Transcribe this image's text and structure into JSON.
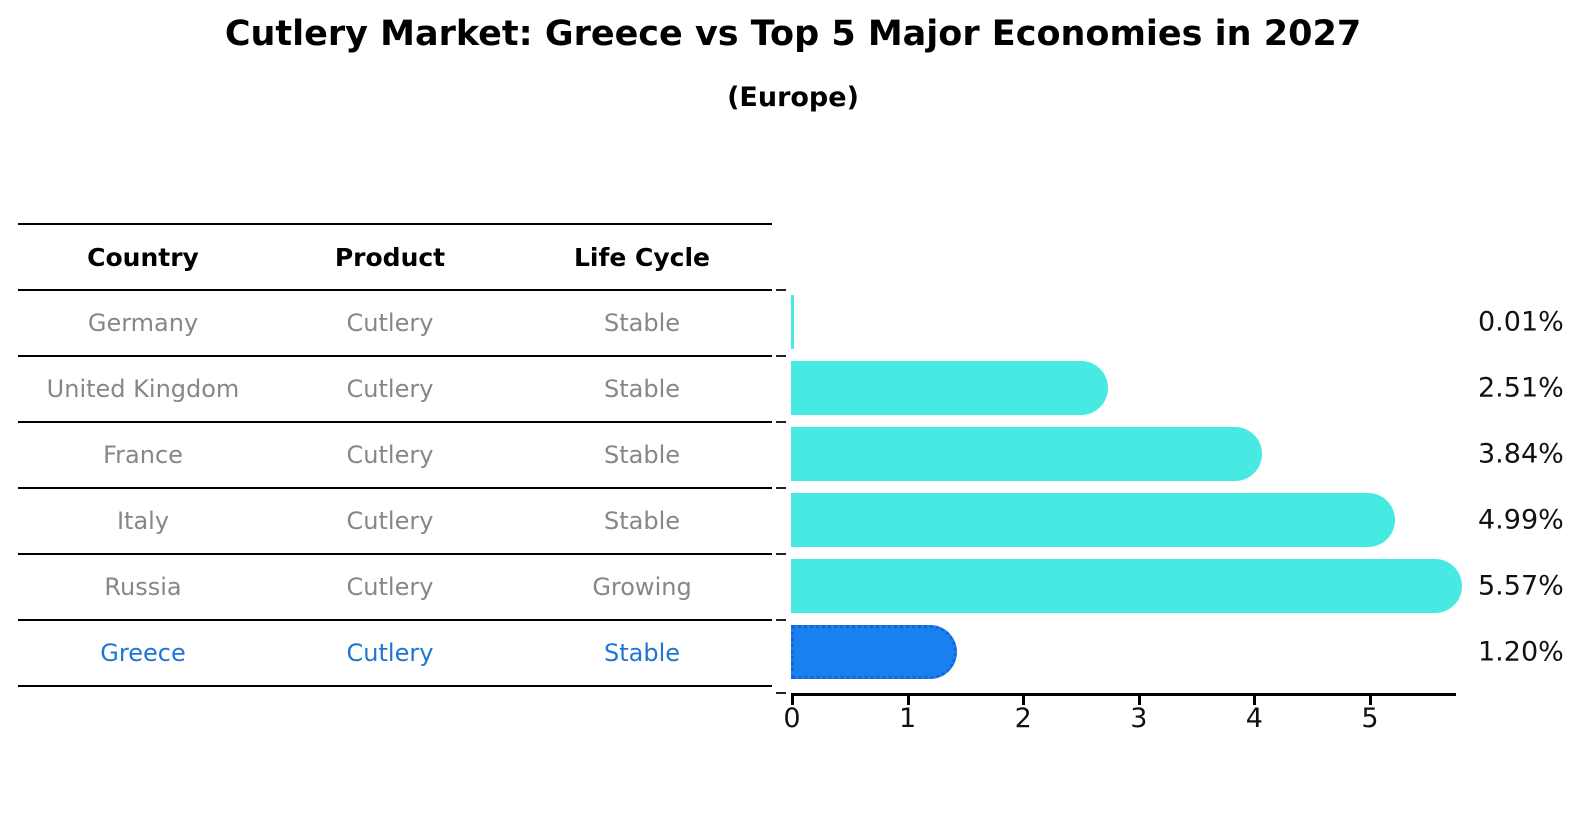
{
  "title": "Cutlery Market: Greece vs Top 5 Major Economies in 2027",
  "subtitle": "(Europe)",
  "chart_data": {
    "type": "bar",
    "orientation": "horizontal",
    "columns": [
      "Country",
      "Product",
      "Life Cycle"
    ],
    "rows": [
      {
        "country": "Germany",
        "product": "Cutlery",
        "life_cycle": "Stable",
        "value": 0.01,
        "label": "0.01%",
        "highlight": false
      },
      {
        "country": "United Kingdom",
        "product": "Cutlery",
        "life_cycle": "Stable",
        "value": 2.51,
        "label": "2.51%",
        "highlight": false
      },
      {
        "country": "France",
        "product": "Cutlery",
        "life_cycle": "Stable",
        "value": 3.84,
        "label": "3.84%",
        "highlight": false
      },
      {
        "country": "Italy",
        "product": "Cutlery",
        "life_cycle": "Stable",
        "value": 4.99,
        "label": "4.99%",
        "highlight": false
      },
      {
        "country": "Russia",
        "product": "Cutlery",
        "life_cycle": "Growing",
        "value": 5.57,
        "label": "5.57%",
        "highlight": false
      },
      {
        "country": "Greece",
        "product": "Cutlery",
        "life_cycle": "Stable",
        "value": 1.2,
        "label": "1.20%",
        "highlight": true
      }
    ],
    "x_ticks": [
      0,
      1,
      2,
      3,
      4,
      5
    ],
    "xlim": [
      0,
      5.75
    ],
    "grid": false,
    "legend": "none",
    "colors": {
      "bar": "#47eae3",
      "highlight_bar": "#1a80f0",
      "highlight_border": "#1565d8",
      "highlight_text": "#1d76d2",
      "row_text": "#878787",
      "header_text": "#000000"
    }
  }
}
